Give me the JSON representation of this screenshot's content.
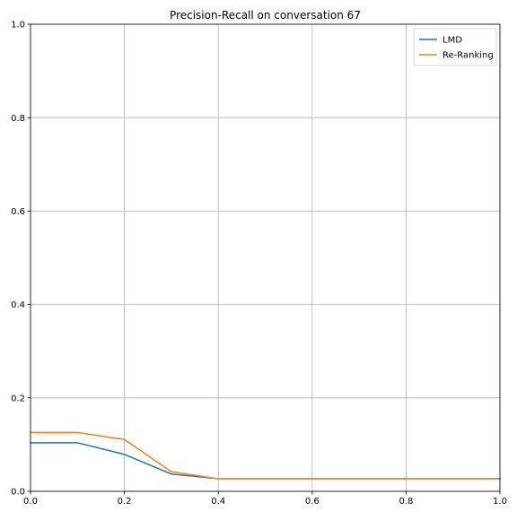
{
  "chart_data": {
    "type": "line",
    "title": "Precision-Recall on conversation 67",
    "xlabel": "",
    "ylabel": "",
    "xlim": [
      0.0,
      1.0
    ],
    "ylim": [
      0.0,
      1.0
    ],
    "x_ticks": [
      0.0,
      0.2,
      0.4,
      0.6,
      0.8,
      1.0
    ],
    "y_ticks": [
      0.0,
      0.2,
      0.4,
      0.6,
      0.8,
      1.0
    ],
    "x_tick_labels": [
      "0.0",
      "0.2",
      "0.4",
      "0.6",
      "0.8",
      "1.0"
    ],
    "y_tick_labels": [
      "0.0",
      "0.2",
      "0.4",
      "0.6",
      "0.8",
      "1.0"
    ],
    "grid": true,
    "legend_position": "top-right",
    "x": [
      0.0,
      0.1,
      0.2,
      0.3,
      0.4,
      0.5,
      0.6,
      0.7,
      0.8,
      0.9,
      1.0
    ],
    "series": [
      {
        "name": "LMD",
        "color": "#1f77b4",
        "values": [
          0.104,
          0.104,
          0.079,
          0.037,
          0.027,
          0.027,
          0.027,
          0.027,
          0.027,
          0.027,
          0.027
        ]
      },
      {
        "name": "Re-Ranking",
        "color": "#ff7f0e",
        "values": [
          0.126,
          0.126,
          0.111,
          0.042,
          0.027,
          0.027,
          0.027,
          0.027,
          0.027,
          0.027,
          0.027
        ]
      }
    ]
  }
}
